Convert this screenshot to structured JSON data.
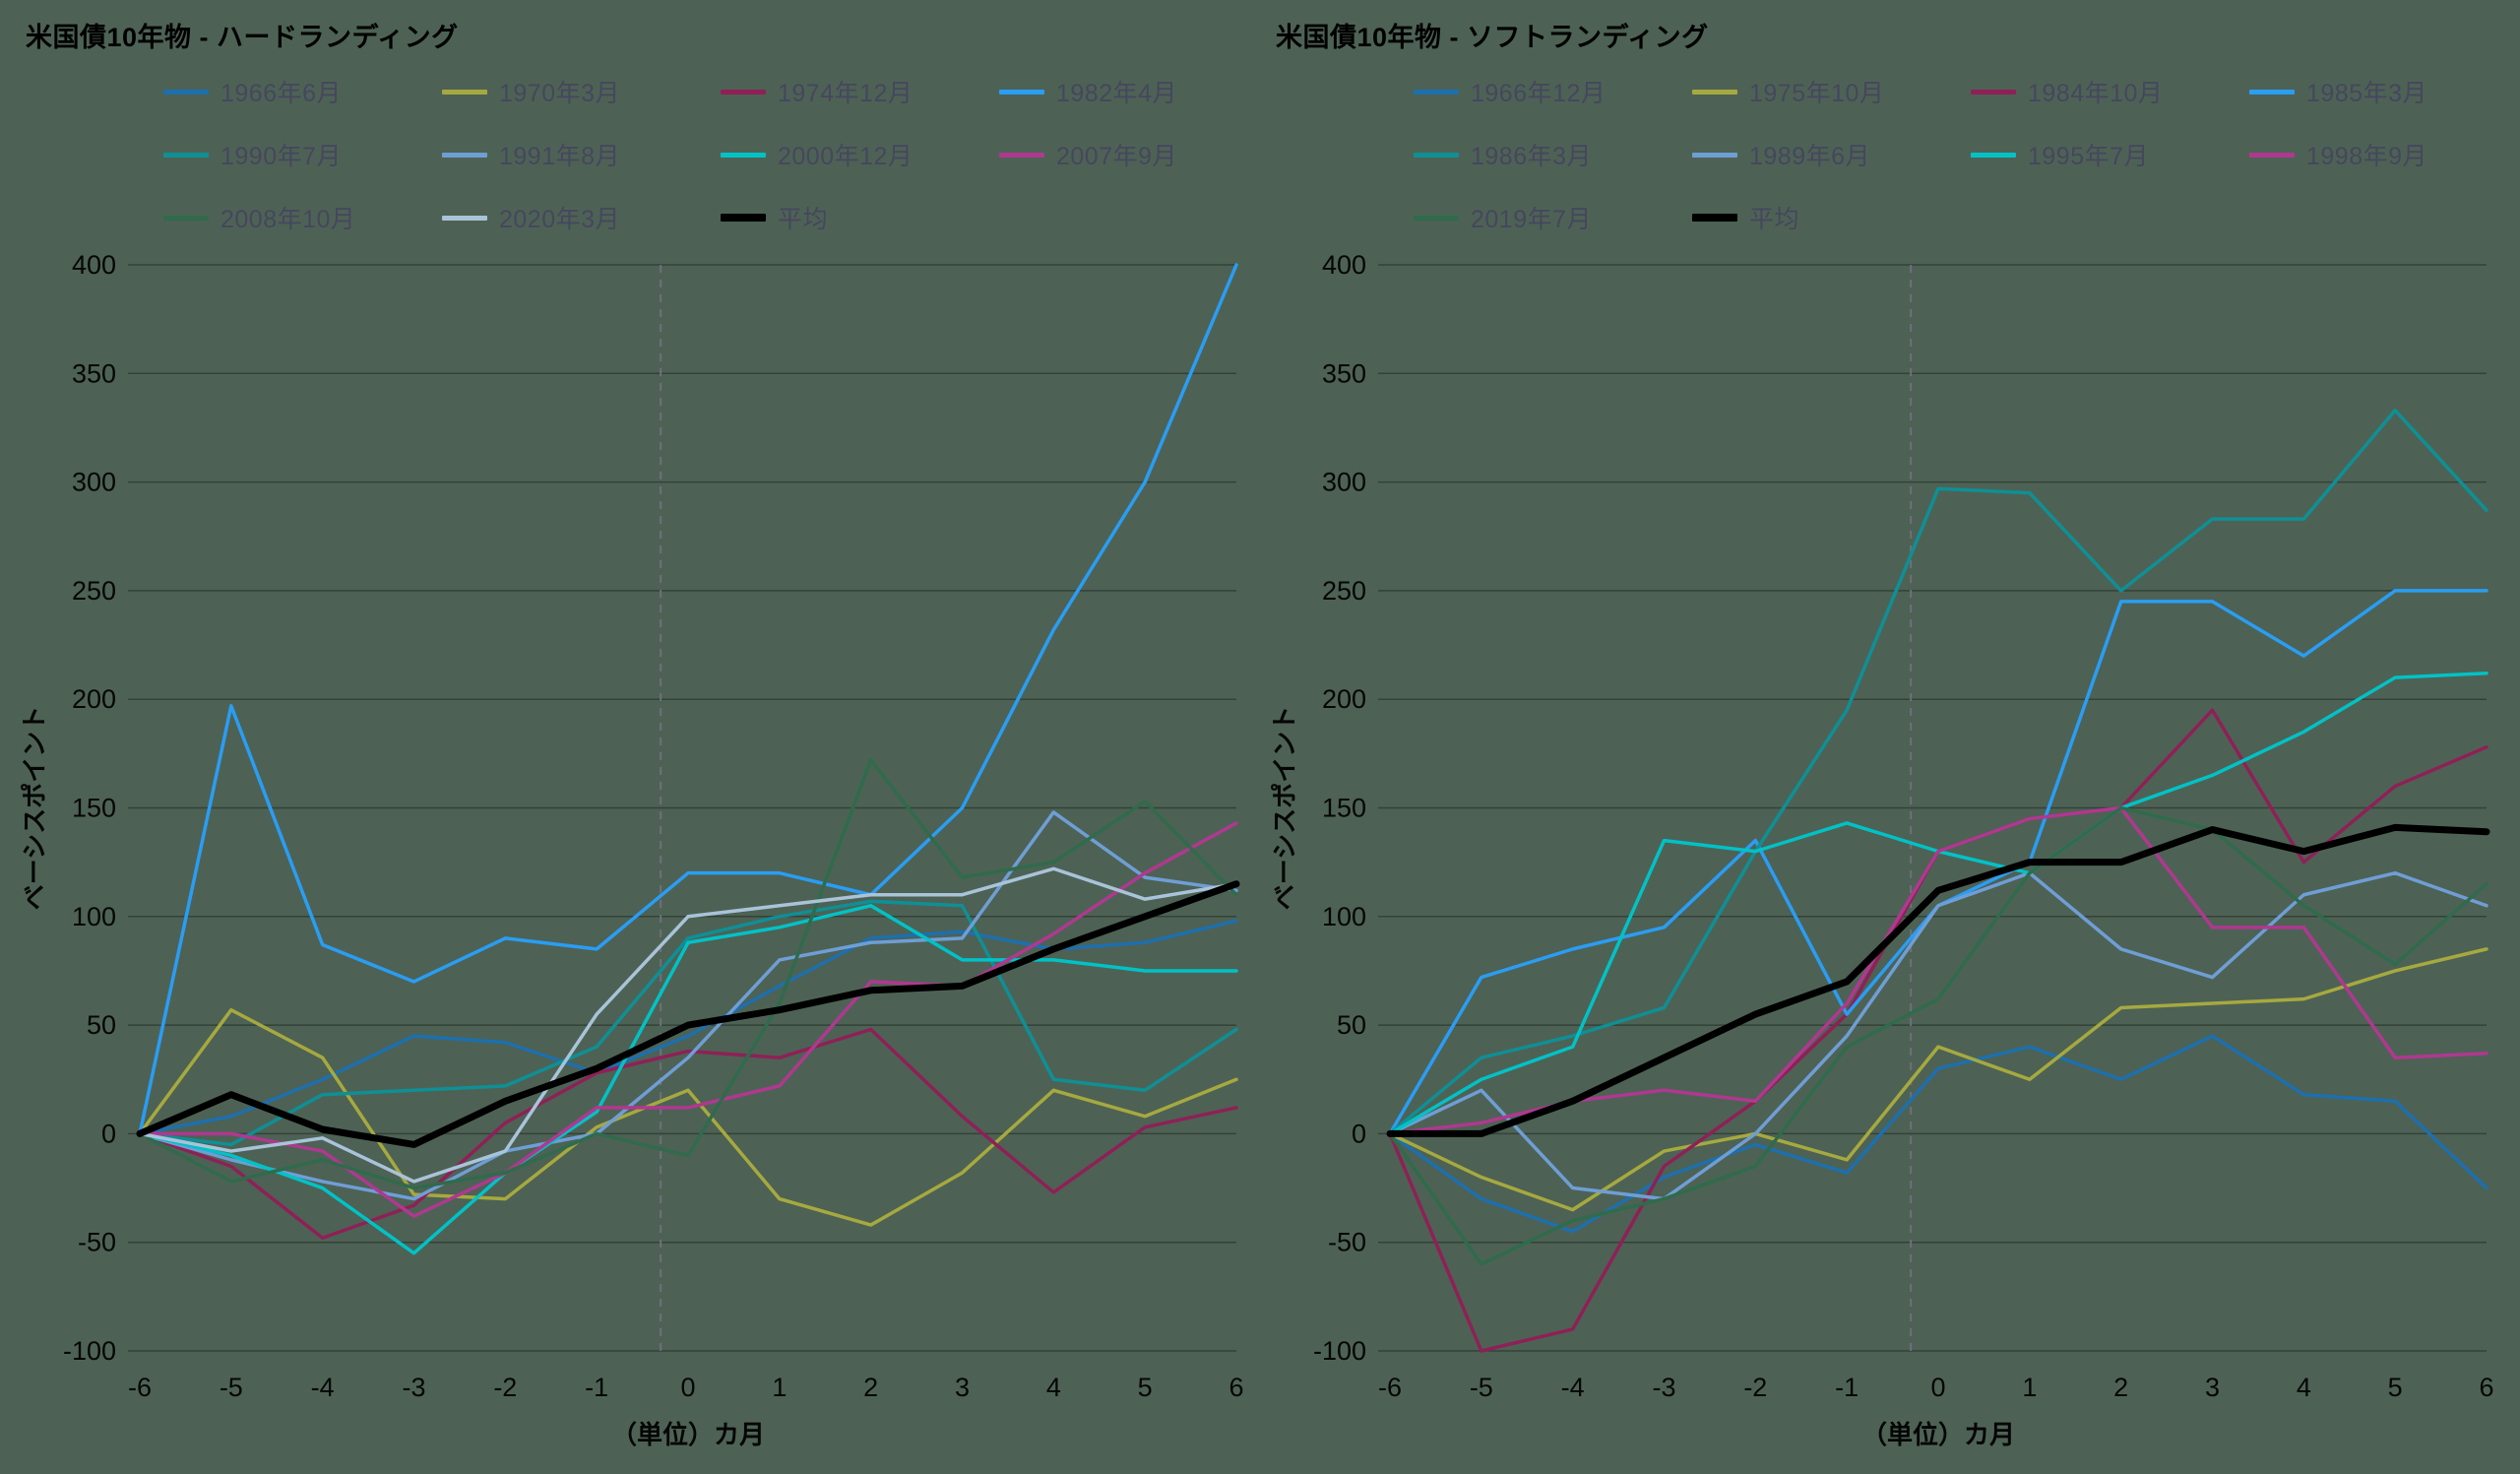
{
  "style": {
    "background": "#4d6254",
    "grid_color": "rgba(0,0,0,0.32)",
    "dashed_line_color": "#6f6f7c",
    "tick_text_color": "#060606",
    "legend_text_color": "#46465f"
  },
  "chart_data": [
    {
      "type": "line",
      "title": "米国債10年物 - ハードランディング",
      "xlabel": "（単位）カ月",
      "ylabel": "ベーシスポイント",
      "xlim": [
        -6,
        6
      ],
      "ylim": [
        -100,
        400
      ],
      "ytick_step": 50,
      "grid": true,
      "legend_position": "top",
      "vline_x": -0.3,
      "x": [
        -6,
        -5,
        -4,
        -3,
        -2,
        -1,
        0,
        1,
        2,
        3,
        4,
        5,
        6
      ],
      "series": [
        {
          "name": "1966年6月",
          "color": "#1d6fae",
          "values": [
            0,
            8,
            25,
            45,
            42,
            28,
            45,
            68,
            90,
            93,
            85,
            88,
            98
          ]
        },
        {
          "name": "1970年3月",
          "color": "#a6a93f",
          "values": [
            0,
            57,
            35,
            -28,
            -30,
            3,
            20,
            -30,
            -42,
            -18,
            20,
            8,
            25
          ]
        },
        {
          "name": "1974年12月",
          "color": "#8f2057",
          "values": [
            0,
            -15,
            -48,
            -33,
            5,
            28,
            38,
            35,
            48,
            8,
            -27,
            3,
            12
          ]
        },
        {
          "name": "1982年4月",
          "color": "#2a9df4",
          "values": [
            0,
            197,
            87,
            70,
            90,
            85,
            120,
            120,
            110,
            150,
            232,
            300,
            400
          ]
        },
        {
          "name": "1990年7月",
          "color": "#0f8f96",
          "values": [
            0,
            -5,
            18,
            20,
            22,
            40,
            90,
            100,
            107,
            105,
            25,
            20,
            48
          ]
        },
        {
          "name": "1991年8月",
          "color": "#6f9ed6",
          "values": [
            0,
            -12,
            -22,
            -30,
            -8,
            0,
            35,
            80,
            88,
            90,
            148,
            118,
            112
          ]
        },
        {
          "name": "2000年12月",
          "color": "#00c2c7",
          "values": [
            0,
            -10,
            -25,
            -55,
            -18,
            10,
            88,
            95,
            105,
            80,
            80,
            75,
            75
          ]
        },
        {
          "name": "2007年9月",
          "color": "#b03890",
          "values": [
            0,
            0,
            -8,
            -38,
            -18,
            12,
            12,
            22,
            70,
            68,
            92,
            120,
            143
          ]
        },
        {
          "name": "2008年10月",
          "color": "#2f6b4c",
          "values": [
            0,
            -22,
            -12,
            -25,
            -18,
            0,
            -10,
            60,
            172,
            118,
            125,
            153,
            110
          ]
        },
        {
          "name": "2020年3月",
          "color": "#a9c3d9",
          "values": [
            0,
            -8,
            -2,
            -22,
            -8,
            55,
            100,
            105,
            110,
            110,
            122,
            108,
            115
          ]
        },
        {
          "name": "平均",
          "color": "#000000",
          "emphasis": true,
          "values": [
            0,
            18,
            2,
            -5,
            15,
            30,
            50,
            57,
            66,
            68,
            85,
            100,
            115
          ]
        }
      ]
    },
    {
      "type": "line",
      "title": "米国債10年物 - ソフトランディング",
      "xlabel": "（単位）カ月",
      "ylabel": "ベーシスポイント",
      "xlim": [
        -6,
        6
      ],
      "ylim": [
        -100,
        400
      ],
      "ytick_step": 50,
      "grid": true,
      "legend_position": "top",
      "vline_x": -0.3,
      "x": [
        -6,
        -5,
        -4,
        -3,
        -2,
        -1,
        0,
        1,
        2,
        3,
        4,
        5,
        6
      ],
      "series": [
        {
          "name": "1966年12月",
          "color": "#1d6fae",
          "values": [
            0,
            -30,
            -45,
            -20,
            -5,
            -18,
            30,
            40,
            25,
            45,
            18,
            15,
            -25
          ]
        },
        {
          "name": "1975年10月",
          "color": "#a6a93f",
          "values": [
            0,
            -20,
            -35,
            -8,
            0,
            -12,
            40,
            25,
            58,
            60,
            62,
            75,
            85
          ]
        },
        {
          "name": "1984年10月",
          "color": "#8f2057",
          "values": [
            0,
            -100,
            -90,
            -15,
            15,
            55,
            130,
            145,
            150,
            195,
            125,
            160,
            178
          ]
        },
        {
          "name": "1985年3月",
          "color": "#2a9df4",
          "values": [
            0,
            72,
            85,
            95,
            135,
            55,
            105,
            125,
            245,
            245,
            220,
            250,
            250
          ]
        },
        {
          "name": "1986年3月",
          "color": "#0f8f96",
          "values": [
            0,
            35,
            45,
            58,
            130,
            195,
            297,
            295,
            250,
            283,
            283,
            333,
            287
          ]
        },
        {
          "name": "1989年6月",
          "color": "#6f9ed6",
          "values": [
            0,
            20,
            -25,
            -30,
            0,
            45,
            105,
            120,
            85,
            72,
            110,
            120,
            105
          ]
        },
        {
          "name": "1995年7月",
          "color": "#00c2c7",
          "values": [
            0,
            25,
            40,
            135,
            130,
            143,
            130,
            120,
            150,
            165,
            185,
            210,
            212
          ]
        },
        {
          "name": "1998年9月",
          "color": "#b03890",
          "values": [
            0,
            5,
            15,
            20,
            15,
            60,
            130,
            145,
            150,
            95,
            95,
            35,
            37
          ]
        },
        {
          "name": "2019年7月",
          "color": "#2f6b4c",
          "values": [
            0,
            -60,
            -40,
            -30,
            -15,
            40,
            62,
            120,
            150,
            140,
            105,
            78,
            115
          ]
        },
        {
          "name": "平均",
          "color": "#000000",
          "emphasis": true,
          "values": [
            0,
            0,
            15,
            35,
            55,
            70,
            112,
            125,
            125,
            140,
            130,
            141,
            139
          ]
        }
      ]
    }
  ]
}
